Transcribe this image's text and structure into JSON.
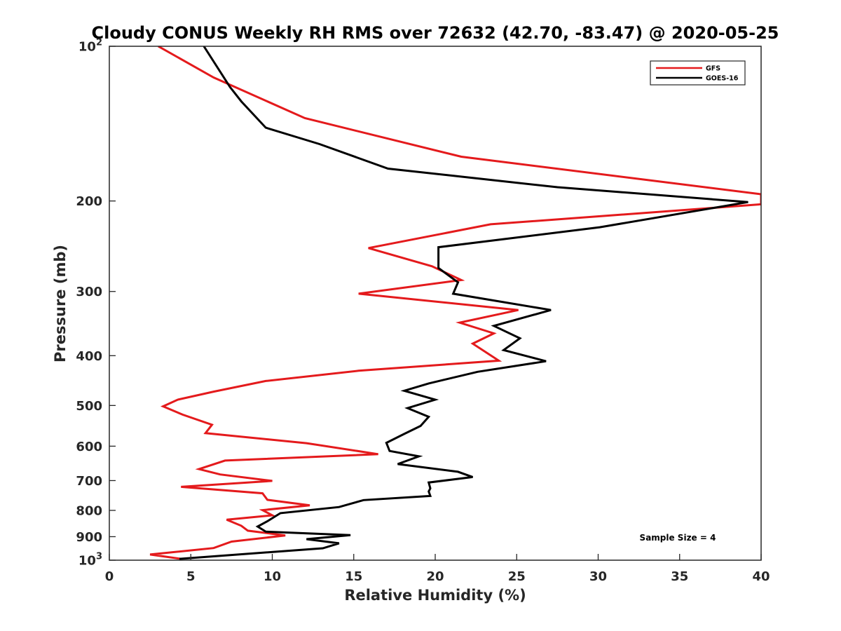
{
  "chart_data": {
    "type": "line",
    "title": "Cloudy CONUS Weekly RH RMS over 72632 (42.70, -83.47) @ 2020-05-25",
    "xlabel": "Relative Humidity (%)",
    "ylabel": "Pressure (mb)",
    "xlim": [
      0,
      40
    ],
    "ylim": [
      100,
      1000
    ],
    "y_scale": "log",
    "y_reversed": true,
    "grid": false,
    "legend_position": "top-right",
    "x_ticks": [
      0,
      5,
      10,
      15,
      20,
      25,
      30,
      35,
      40
    ],
    "y_ticks": [
      {
        "value": 100,
        "label": "10",
        "exp": "2"
      },
      {
        "value": 200,
        "label": "200"
      },
      {
        "value": 300,
        "label": "300"
      },
      {
        "value": 400,
        "label": "400"
      },
      {
        "value": 500,
        "label": "500"
      },
      {
        "value": 600,
        "label": "600"
      },
      {
        "value": 700,
        "label": "700"
      },
      {
        "value": 800,
        "label": "800"
      },
      {
        "value": 900,
        "label": "900"
      },
      {
        "value": 1000,
        "label": "10",
        "exp": "3"
      }
    ],
    "series": [
      {
        "name": "GFS",
        "color": "#e41a1c",
        "points": [
          [
            3.0,
            100
          ],
          [
            6.4,
            115
          ],
          [
            12.0,
            138
          ],
          [
            21.6,
            164
          ],
          [
            40.0,
            194
          ],
          [
            40.0,
            203
          ],
          [
            23.4,
            222
          ],
          [
            15.9,
            247
          ],
          [
            19.8,
            268
          ],
          [
            21.6,
            285
          ],
          [
            15.3,
            303
          ],
          [
            25.1,
            326
          ],
          [
            21.5,
            345
          ],
          [
            23.6,
            362
          ],
          [
            22.3,
            379
          ],
          [
            23.9,
            409
          ],
          [
            15.3,
            428
          ],
          [
            9.6,
            448
          ],
          [
            6.4,
            470
          ],
          [
            4.2,
            487
          ],
          [
            3.3,
            502
          ],
          [
            4.5,
            521
          ],
          [
            6.3,
            545
          ],
          [
            5.9,
            566
          ],
          [
            12.1,
            592
          ],
          [
            16.5,
            622
          ],
          [
            7.1,
            640
          ],
          [
            5.5,
            665
          ],
          [
            6.8,
            681
          ],
          [
            10.0,
            701
          ],
          [
            4.4,
            720
          ],
          [
            9.4,
            741
          ],
          [
            9.7,
            763
          ],
          [
            12.3,
            782
          ],
          [
            9.4,
            799
          ],
          [
            10.0,
            818
          ],
          [
            7.2,
            834
          ],
          [
            8.1,
            857
          ],
          [
            8.5,
            876
          ],
          [
            10.8,
            895
          ],
          [
            7.5,
            920
          ],
          [
            6.4,
            947
          ],
          [
            2.5,
            975
          ],
          [
            4.4,
            994
          ]
        ]
      },
      {
        "name": "GOES-16",
        "color": "#000000",
        "points": [
          [
            5.8,
            100
          ],
          [
            7.4,
            120
          ],
          [
            8.1,
            128
          ],
          [
            9.6,
            144
          ],
          [
            12.9,
            155
          ],
          [
            17.1,
            173
          ],
          [
            27.5,
            188
          ],
          [
            39.2,
            201
          ],
          [
            30.1,
            225
          ],
          [
            20.2,
            246
          ],
          [
            20.2,
            270
          ],
          [
            21.4,
            288
          ],
          [
            21.1,
            303
          ],
          [
            27.1,
            326
          ],
          [
            23.6,
            350
          ],
          [
            25.2,
            370
          ],
          [
            24.2,
            390
          ],
          [
            26.8,
            410
          ],
          [
            22.6,
            430
          ],
          [
            19.6,
            453
          ],
          [
            18.1,
            468
          ],
          [
            20.0,
            487
          ],
          [
            18.3,
            506
          ],
          [
            19.6,
            526
          ],
          [
            19.1,
            548
          ],
          [
            18.1,
            568
          ],
          [
            17.0,
            591
          ],
          [
            17.2,
            613
          ],
          [
            19.0,
            628
          ],
          [
            17.7,
            650
          ],
          [
            21.4,
            673
          ],
          [
            22.3,
            689
          ],
          [
            19.6,
            706
          ],
          [
            19.7,
            725
          ],
          [
            19.6,
            735
          ],
          [
            19.7,
            750
          ],
          [
            15.6,
            764
          ],
          [
            14.1,
            788
          ],
          [
            10.5,
            810
          ],
          [
            9.7,
            840
          ],
          [
            9.1,
            860
          ],
          [
            9.6,
            880
          ],
          [
            14.8,
            894
          ],
          [
            12.1,
            910
          ],
          [
            14.1,
            927
          ],
          [
            13.1,
            948
          ],
          [
            4.3,
            994
          ]
        ]
      }
    ],
    "annotation": "Sample Size = 4"
  }
}
